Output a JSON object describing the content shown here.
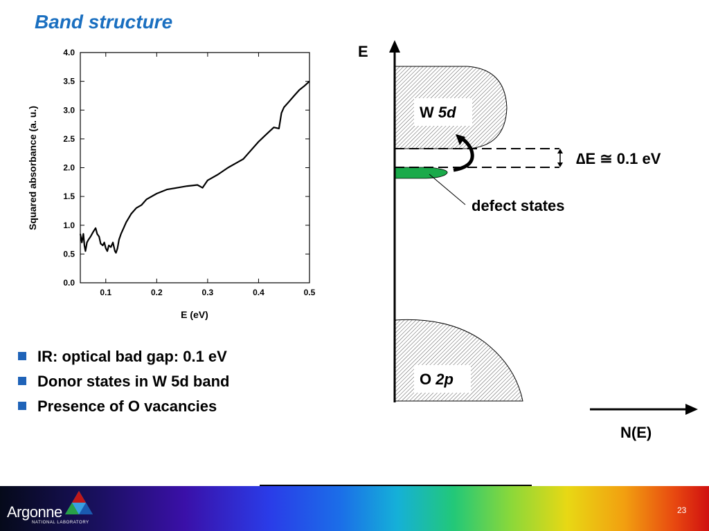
{
  "slide": {
    "title": "Band structure",
    "bullets": [
      "IR: optical bad gap: 0.1 eV",
      "Donor states in W 5d band",
      "Presence of O vacancies"
    ],
    "page_number": "23"
  },
  "logo": {
    "name": "Argonne",
    "subtitle": "NATIONAL LABORATORY"
  },
  "chart_data": {
    "type": "line",
    "xlabel": "E (eV)",
    "ylabel": "Squared absorbance (a. u.)",
    "xlim": [
      0.05,
      0.5
    ],
    "ylim": [
      0,
      4.0
    ],
    "x_ticks": [
      "0.1",
      "0.2",
      "0.3",
      "0.4",
      "0.5"
    ],
    "y_ticks": [
      "0.0",
      "0.5",
      "1.0",
      "1.5",
      "2.0",
      "2.5",
      "3.0",
      "3.5",
      "4.0"
    ],
    "grid": false,
    "series": [
      {
        "x": [
          0.05,
          0.053,
          0.056,
          0.058,
          0.06,
          0.063,
          0.066,
          0.07,
          0.075,
          0.08,
          0.083,
          0.087,
          0.09,
          0.094,
          0.097,
          0.1,
          0.103,
          0.106,
          0.11,
          0.114,
          0.118,
          0.12,
          0.123,
          0.126,
          0.13,
          0.135,
          0.14,
          0.15,
          0.16,
          0.17,
          0.18,
          0.2,
          0.22,
          0.24,
          0.26,
          0.28,
          0.29,
          0.3,
          0.32,
          0.34,
          0.36,
          0.37,
          0.38,
          0.4,
          0.42,
          0.43,
          0.44,
          0.445,
          0.45,
          0.46,
          0.47,
          0.48,
          0.49,
          0.5
        ],
        "y": [
          0.85,
          0.7,
          0.85,
          0.65,
          0.55,
          0.7,
          0.75,
          0.8,
          0.88,
          0.95,
          0.85,
          0.8,
          0.68,
          0.65,
          0.7,
          0.6,
          0.55,
          0.65,
          0.62,
          0.7,
          0.55,
          0.52,
          0.6,
          0.75,
          0.85,
          0.95,
          1.05,
          1.2,
          1.3,
          1.35,
          1.45,
          1.55,
          1.62,
          1.65,
          1.68,
          1.7,
          1.65,
          1.78,
          1.88,
          2.0,
          2.1,
          2.15,
          2.25,
          2.45,
          2.62,
          2.7,
          2.68,
          2.95,
          3.05,
          3.15,
          3.25,
          3.35,
          3.42,
          3.5
        ]
      }
    ]
  },
  "diagram": {
    "e_axis_label": "E",
    "ne_axis_label": "N(E)",
    "w5d_label_prefix": "W ",
    "w5d_label_italic": "5d",
    "o2p_label_prefix": "O ",
    "o2p_label_italic": "2p",
    "delta_e_label": "∆E ≅ 0.1 eV",
    "defect_label": "defect states",
    "defect_color": "#1aaa4a",
    "title_color": "#1a6fc0",
    "bullet_color": "#1f63b8"
  }
}
